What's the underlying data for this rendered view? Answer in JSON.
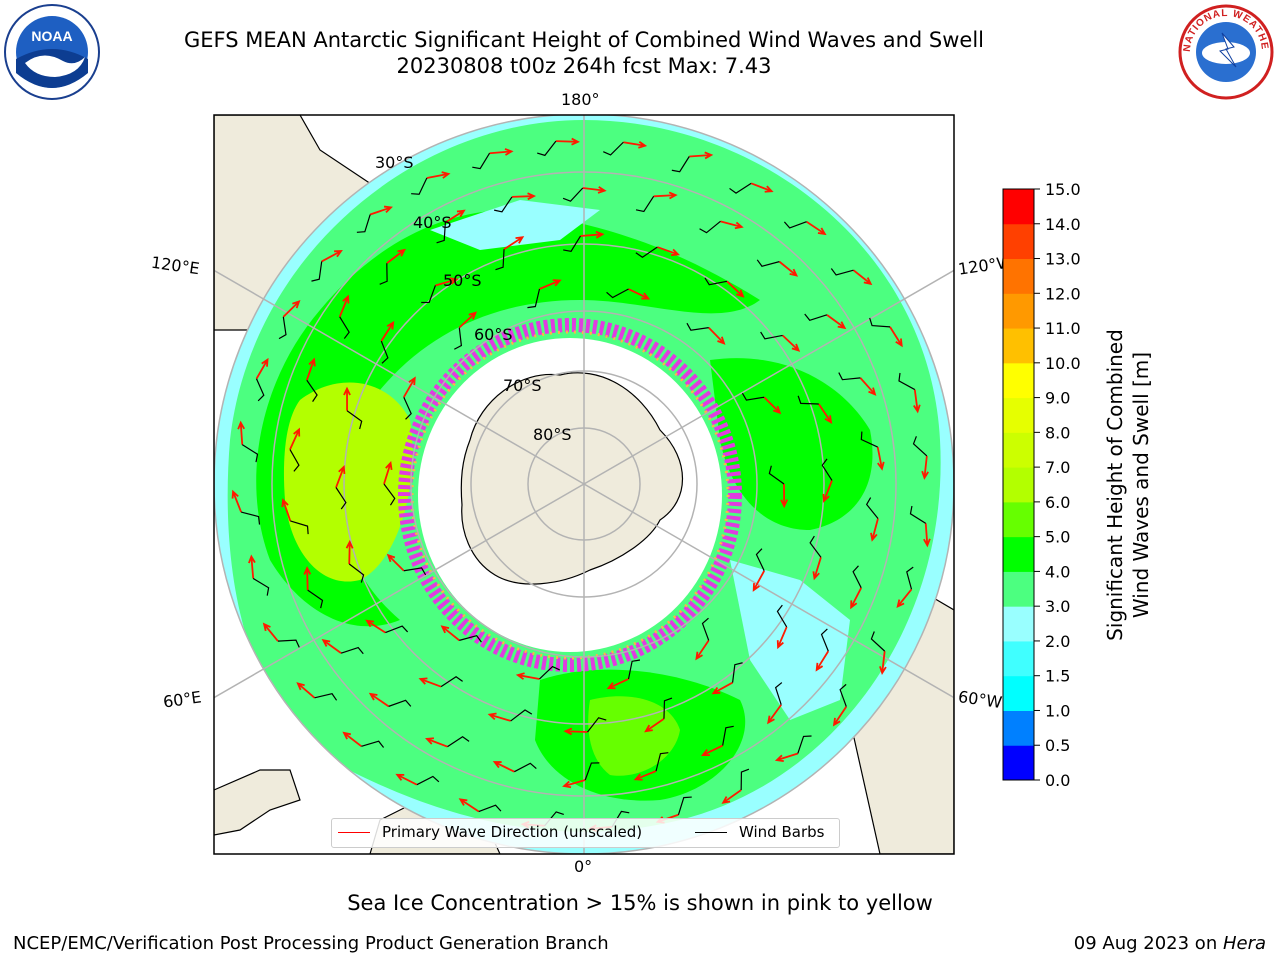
{
  "header": {
    "title_line1": "GEFS MEAN Antarctic Significant Height of Combined Wind Waves and Swell",
    "title_line2": "20230808 t00z 264h fcst   Max: 7.43"
  },
  "logos": {
    "left": {
      "icon": "noaa-logo",
      "text": "NOAA"
    },
    "right": {
      "icon": "nws-logo",
      "text": "NATIONAL WEATHER SERVICE"
    }
  },
  "map": {
    "projection": "south-polar-stereographic",
    "longitude_labels": {
      "top": "180°",
      "bottom": "0°",
      "left_upper": "120°E",
      "left_lower": "60°E",
      "right_upper": "120°W",
      "right_lower": "60°W"
    },
    "latitude_labels": [
      "30°S",
      "40°S",
      "50°S",
      "60°S",
      "70°S",
      "80°S"
    ],
    "colors": {
      "land": "#efebdc",
      "ice_edge": "#e03ce0",
      "arrow": "#ff1a00",
      "barb": "#000000",
      "grid": "#b3b3b3"
    }
  },
  "chart_data": {
    "type": "heatmap",
    "variable": "Significant Height of Combined Wind Waves and Swell",
    "units": "m",
    "max_value": 7.43,
    "colorbar": {
      "ticks": [
        "0.0",
        "0.5",
        "1.0",
        "1.5",
        "2.0",
        "3.0",
        "4.0",
        "5.0",
        "6.0",
        "7.0",
        "8.0",
        "9.0",
        "10.0",
        "11.0",
        "12.0",
        "13.0",
        "14.0",
        "15.0"
      ],
      "bins": [
        {
          "from": 0.0,
          "to": 0.5,
          "color": "#0000ff"
        },
        {
          "from": 0.5,
          "to": 1.0,
          "color": "#0080ff"
        },
        {
          "from": 1.0,
          "to": 1.5,
          "color": "#00ffff"
        },
        {
          "from": 1.5,
          "to": 2.0,
          "color": "#40ffff"
        },
        {
          "from": 2.0,
          "to": 3.0,
          "color": "#99ffff"
        },
        {
          "from": 3.0,
          "to": 4.0,
          "color": "#4cff80"
        },
        {
          "from": 4.0,
          "to": 5.0,
          "color": "#00ff00"
        },
        {
          "from": 5.0,
          "to": 6.0,
          "color": "#66ff00"
        },
        {
          "from": 6.0,
          "to": 7.0,
          "color": "#b3ff00"
        },
        {
          "from": 7.0,
          "to": 8.0,
          "color": "#ccff00"
        },
        {
          "from": 8.0,
          "to": 9.0,
          "color": "#e6ff00"
        },
        {
          "from": 9.0,
          "to": 10.0,
          "color": "#ffff00"
        },
        {
          "from": 10.0,
          "to": 11.0,
          "color": "#ffc000"
        },
        {
          "from": 11.0,
          "to": 12.0,
          "color": "#ff9900"
        },
        {
          "from": 12.0,
          "to": 13.0,
          "color": "#ff7300"
        },
        {
          "from": 13.0,
          "to": 14.0,
          "color": "#ff4000"
        },
        {
          "from": 14.0,
          "to": 15.0,
          "color": "#ff0000"
        }
      ],
      "label_line1": "Significant Height of Combined",
      "label_line2": "Wind Waves and Swell [m]"
    },
    "legend": [
      {
        "label": "Primary Wave Direction (unscaled)",
        "color": "#ff0000"
      },
      {
        "label": "Wind Barbs",
        "color": "#000000"
      }
    ]
  },
  "footer": {
    "note": "Sea Ice Concentration > 15% is shown in pink to yellow",
    "left": "NCEP/EMC/Verification Post Processing Product Generation Branch",
    "right_date": "09 Aug 2023 on ",
    "right_host": "Hera"
  }
}
